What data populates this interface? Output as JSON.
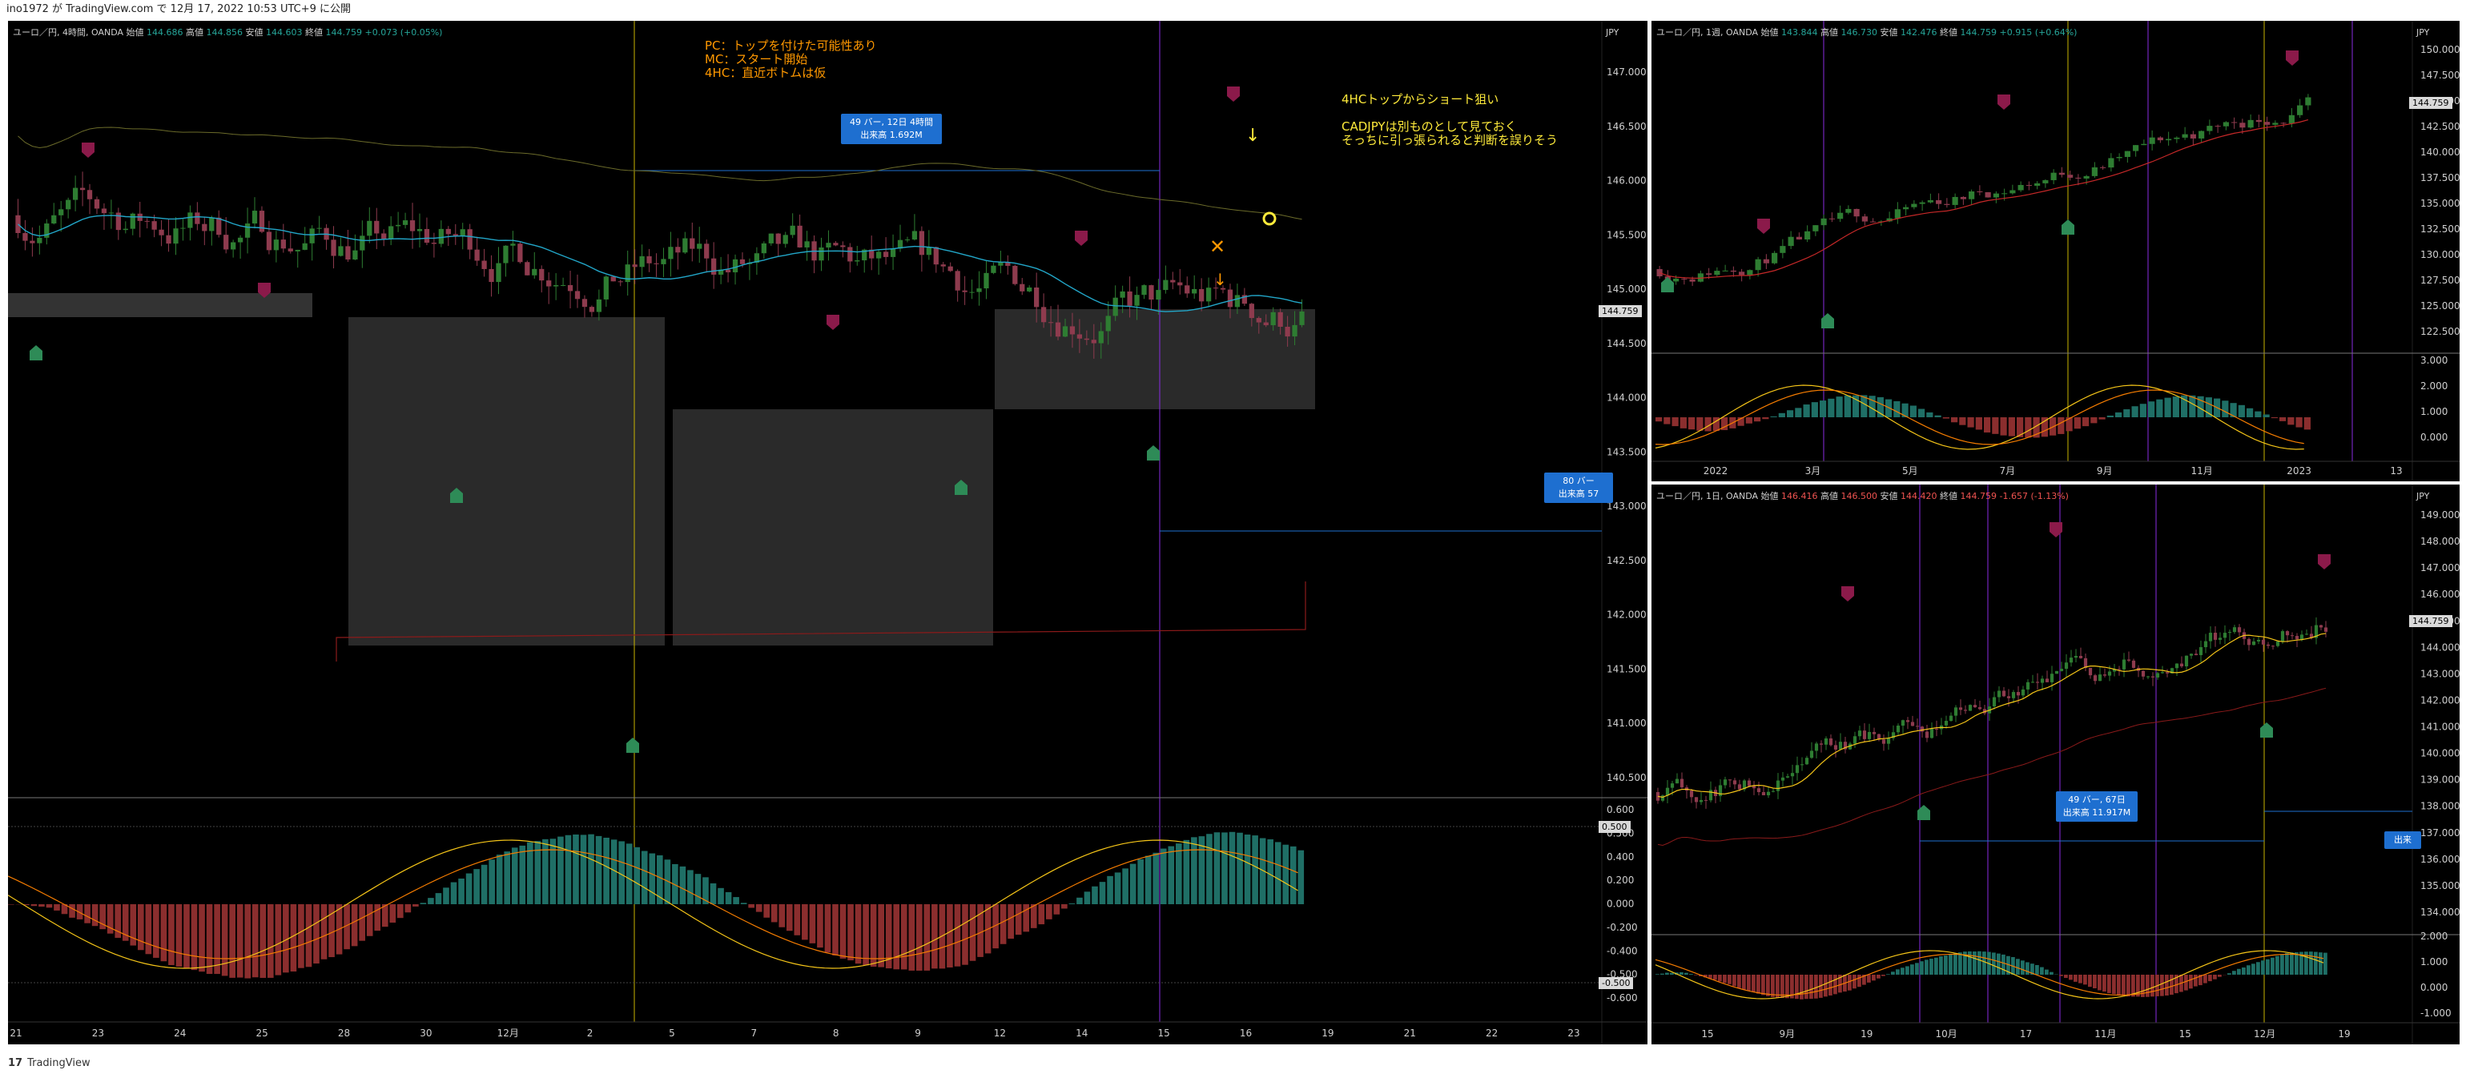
{
  "header": {
    "published_text": "ino1972 が TradingView.com で 12月 17, 2022 10:53 UTC+9 に公開"
  },
  "footer": {
    "brand": "TradingView",
    "logo": "tradingview-logo-icon"
  },
  "colors": {
    "bull": "#2e7d32",
    "bear": "#8e3b4e",
    "ma": "#22a6c8",
    "macd": "#f5c518",
    "signal": "#f57c00",
    "vline_yellow": "#c8b400",
    "vline_purple": "#8a2be2",
    "hline_blue": "#1e6fd0",
    "tooltip": "#1e6fd0"
  },
  "panels": {
    "main": {
      "legend": {
        "symbol": "ユーロ／円, 4時間, OANDA",
        "open_label": "始値",
        "open": "144.686",
        "high_label": "高値",
        "high": "144.856",
        "low_label": "安値",
        "low": "144.603",
        "close_label": "終値",
        "close": "144.759",
        "change": "+0.073 (+0.05%)"
      },
      "currency": "JPY",
      "price_labels": [
        "147.000",
        "146.500",
        "146.000",
        "145.500",
        "145.000",
        "144.500",
        "144.000",
        "143.500",
        "143.000",
        "142.500",
        "142.000",
        "141.500",
        "141.000",
        "140.500"
      ],
      "last_price": "144.759",
      "macd_labels": [
        "0.600",
        "0.500",
        "0.400",
        "0.200",
        "0.000",
        "-0.200",
        "-0.400",
        "-0.500",
        "-0.600"
      ],
      "macd_tag_a": "0.500",
      "macd_tag_b": "-0.500",
      "date_labels": [
        "21",
        "23",
        "24",
        "25",
        "28",
        "30",
        "12月",
        "2",
        "5",
        "7",
        "8",
        "9",
        "12",
        "14",
        "15",
        "16",
        "19",
        "21",
        "22",
        "23"
      ],
      "note_orange": "PC：トップを付けた可能性あり\nMC：スタート開始\n4HC：直近ボトムは仮",
      "note_yellow": "4HCトップからショート狙い\n\nCADJPYは別ものとして見ておく\nそっちに引っ張られると判断を誤りそう",
      "tooltip_1": "49 バー, 12日 4時間\n出来高 1.692M",
      "tooltip_2": "80 バー\n出来高 57"
    },
    "weekly": {
      "legend": {
        "symbol": "ユーロ／円, 1週, OANDA",
        "open_label": "始値",
        "open": "143.844",
        "high_label": "高値",
        "high": "146.730",
        "low_label": "安値",
        "low": "142.476",
        "close_label": "終値",
        "close": "144.759",
        "change": "+0.915 (+0.64%)"
      },
      "currency": "JPY",
      "price_labels": [
        "150.000",
        "147.500",
        "145.000",
        "142.500",
        "140.000",
        "137.500",
        "135.000",
        "132.500",
        "130.000",
        "127.500",
        "125.000",
        "122.500"
      ],
      "last_price": "144.759",
      "macd_labels": [
        "3.000",
        "2.000",
        "1.000",
        "0.000"
      ],
      "date_labels": [
        "2022",
        "3月",
        "5月",
        "7月",
        "9月",
        "11月",
        "2023",
        "13"
      ]
    },
    "daily": {
      "legend": {
        "symbol": "ユーロ／円, 1日, OANDA",
        "open_label": "始値",
        "open": "146.416",
        "high_label": "高値",
        "high": "146.500",
        "low_label": "安値",
        "low": "144.420",
        "close_label": "終値",
        "close": "144.759",
        "change": "-1.657 (-1.13%)"
      },
      "currency": "JPY",
      "price_labels": [
        "149.000",
        "148.000",
        "147.000",
        "146.000",
        "145.000",
        "144.000",
        "143.000",
        "142.000",
        "141.000",
        "140.000",
        "139.000",
        "138.000",
        "137.000",
        "136.000",
        "135.000",
        "134.000"
      ],
      "last_price": "144.759",
      "macd_labels": [
        "2.000",
        "1.000",
        "0.000",
        "-1.000"
      ],
      "date_labels": [
        "15",
        "9月",
        "19",
        "10月",
        "17",
        "11月",
        "15",
        "12月",
        "19"
      ],
      "tooltip_1": "49 バー, 67日\n出来高 11.917M",
      "tooltip_2": "出来"
    }
  }
}
